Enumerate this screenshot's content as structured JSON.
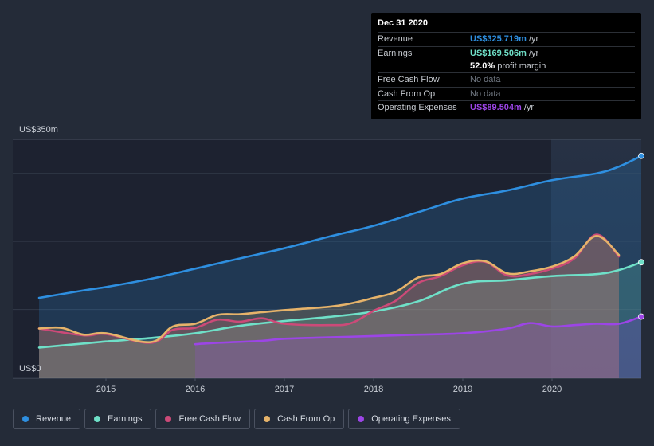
{
  "chart_data": {
    "type": "area",
    "y_axis": {
      "max_label": "US$350m",
      "min_label": "US$0",
      "ylim": [
        0,
        350
      ]
    },
    "x_ticks": [
      "2015",
      "2016",
      "2017",
      "2018",
      "2019",
      "2020"
    ],
    "series": [
      {
        "name": "Revenue",
        "color": "#2e8fe0",
        "points": [
          [
            2014.25,
            117
          ],
          [
            2014.75,
            128
          ],
          [
            2015.0,
            133
          ],
          [
            2015.5,
            145
          ],
          [
            2016.0,
            160
          ],
          [
            2016.5,
            175
          ],
          [
            2017.0,
            190
          ],
          [
            2017.5,
            207
          ],
          [
            2018.0,
            223
          ],
          [
            2018.5,
            243
          ],
          [
            2019.0,
            263
          ],
          [
            2019.5,
            275
          ],
          [
            2020.0,
            290
          ],
          [
            2020.5,
            300
          ],
          [
            2020.75,
            310
          ],
          [
            2021.0,
            325.719
          ]
        ]
      },
      {
        "name": "Earnings",
        "color": "#6fe0c8",
        "points": [
          [
            2014.25,
            44
          ],
          [
            2014.75,
            50
          ],
          [
            2015.0,
            53
          ],
          [
            2015.5,
            58
          ],
          [
            2016.0,
            65
          ],
          [
            2016.5,
            76
          ],
          [
            2017.0,
            83
          ],
          [
            2017.5,
            89
          ],
          [
            2018.0,
            97
          ],
          [
            2018.5,
            112
          ],
          [
            2019.0,
            138
          ],
          [
            2019.5,
            143
          ],
          [
            2020.0,
            149
          ],
          [
            2020.5,
            152
          ],
          [
            2020.75,
            158
          ],
          [
            2021.0,
            169.506
          ]
        ]
      },
      {
        "name": "Free Cash Flow",
        "color": "#cc4a78",
        "points": [
          [
            2014.25,
            72
          ],
          [
            2014.75,
            62
          ],
          [
            2015.0,
            64
          ],
          [
            2015.5,
            51
          ],
          [
            2015.75,
            70
          ],
          [
            2016.0,
            73
          ],
          [
            2016.25,
            85
          ],
          [
            2016.5,
            82
          ],
          [
            2016.75,
            87
          ],
          [
            2017.0,
            79
          ],
          [
            2017.5,
            77
          ],
          [
            2017.75,
            80
          ],
          [
            2018.0,
            98
          ],
          [
            2018.25,
            113
          ],
          [
            2018.5,
            139
          ],
          [
            2018.75,
            149
          ],
          [
            2019.0,
            165
          ],
          [
            2019.25,
            170
          ],
          [
            2019.5,
            150
          ],
          [
            2019.75,
            152
          ],
          [
            2020.0,
            160
          ],
          [
            2020.25,
            175
          ],
          [
            2020.5,
            210
          ],
          [
            2020.75,
            178
          ]
        ]
      },
      {
        "name": "Cash From Op",
        "color": "#e6b36a",
        "points": [
          [
            2014.25,
            72
          ],
          [
            2014.5,
            73
          ],
          [
            2014.75,
            63
          ],
          [
            2015.0,
            65
          ],
          [
            2015.5,
            52
          ],
          [
            2015.75,
            75
          ],
          [
            2016.0,
            79
          ],
          [
            2016.25,
            92
          ],
          [
            2016.5,
            93
          ],
          [
            2016.75,
            96
          ],
          [
            2017.0,
            99
          ],
          [
            2017.5,
            104
          ],
          [
            2017.75,
            109
          ],
          [
            2018.0,
            117
          ],
          [
            2018.25,
            126
          ],
          [
            2018.5,
            147
          ],
          [
            2018.75,
            152
          ],
          [
            2019.0,
            168
          ],
          [
            2019.25,
            171
          ],
          [
            2019.5,
            153
          ],
          [
            2019.75,
            156
          ],
          [
            2020.0,
            163
          ],
          [
            2020.25,
            178
          ],
          [
            2020.5,
            208
          ],
          [
            2020.75,
            180
          ]
        ]
      },
      {
        "name": "Operating Expenses",
        "color": "#9c45e6",
        "points": [
          [
            2016.0,
            49
          ],
          [
            2016.25,
            51
          ],
          [
            2016.75,
            54
          ],
          [
            2017.0,
            57
          ],
          [
            2017.5,
            59
          ],
          [
            2018.0,
            61
          ],
          [
            2018.5,
            63
          ],
          [
            2019.0,
            65
          ],
          [
            2019.5,
            72
          ],
          [
            2019.75,
            80
          ],
          [
            2020.0,
            75
          ],
          [
            2020.25,
            77
          ],
          [
            2020.5,
            79
          ],
          [
            2020.75,
            79
          ],
          [
            2021.0,
            89.504
          ]
        ]
      }
    ],
    "x_range": [
      2014.0,
      2021.0
    ]
  },
  "tooltip": {
    "date": "Dec 31 2020",
    "rows": [
      {
        "name": "Revenue",
        "value": "US$325.719m",
        "unit": "/yr",
        "color": "#2e8fe0"
      },
      {
        "name": "Earnings",
        "value": "US$169.506m",
        "unit": "/yr",
        "color": "#6fe0c8"
      },
      {
        "name": "Free Cash Flow",
        "value": "No data",
        "nodata": true
      },
      {
        "name": "Cash From Op",
        "value": "No data",
        "nodata": true
      },
      {
        "name": "Operating Expenses",
        "value": "US$89.504m",
        "unit": "/yr",
        "color": "#9c45e6"
      }
    ],
    "margin_value": "52.0%",
    "margin_label": "profit margin"
  },
  "legend": [
    {
      "label": "Revenue",
      "color": "#2e8fe0"
    },
    {
      "label": "Earnings",
      "color": "#6fe0c8"
    },
    {
      "label": "Free Cash Flow",
      "color": "#cc4a78"
    },
    {
      "label": "Cash From Op",
      "color": "#e6b36a"
    },
    {
      "label": "Operating Expenses",
      "color": "#9c45e6"
    }
  ]
}
